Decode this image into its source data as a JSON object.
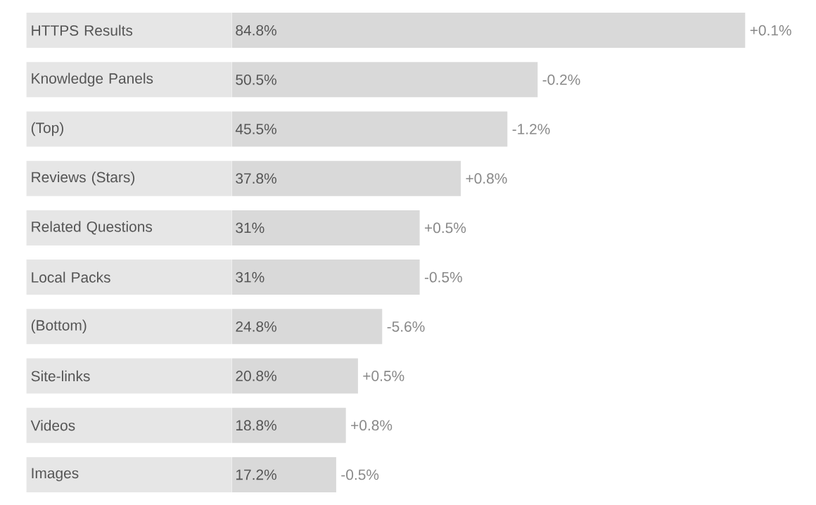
{
  "chart_data": {
    "type": "bar",
    "orientation": "horizontal",
    "categories": [
      "HTTPS Results",
      "Knowledge Panels",
      "(Top)",
      "Reviews (Stars)",
      "Related Questions",
      "Local Packs",
      "(Bottom)",
      "Site-links",
      "Videos",
      "Images"
    ],
    "values": [
      84.8,
      50.5,
      45.5,
      37.8,
      31,
      31,
      24.8,
      20.8,
      18.8,
      17.2
    ],
    "value_labels": [
      "84.8%",
      "50.5%",
      "45.5%",
      "37.8%",
      "31%",
      "31%",
      "24.8%",
      "20.8%",
      "18.8%",
      "17.2%"
    ],
    "color": "#d9d9d9",
    "tick_labels": "y",
    "annotations": [
      {
        "text": "+0.1%",
        "x": 84.8,
        "y": "HTTPS Results"
      },
      {
        "text": "-0.2%",
        "x": 50.5,
        "y": "Knowledge Panels"
      },
      {
        "text": "-1.2%",
        "x": 45.5,
        "y": "(Top)"
      },
      {
        "text": "+0.8%",
        "x": 37.8,
        "y": "Reviews (Stars)"
      },
      {
        "text": "+0.5%",
        "x": 31,
        "y": "Related Questions"
      },
      {
        "text": "-0.5%",
        "x": 31,
        "y": "Local Packs"
      },
      {
        "text": "-5.6%",
        "x": 24.8,
        "y": "(Bottom)"
      },
      {
        "text": "+0.5%",
        "x": 20.8,
        "y": "Site-links"
      },
      {
        "text": "+0.8%",
        "x": 18.8,
        "y": "Videos"
      },
      {
        "text": "-0.5%",
        "x": 17.2,
        "y": "Images"
      }
    ]
  }
}
